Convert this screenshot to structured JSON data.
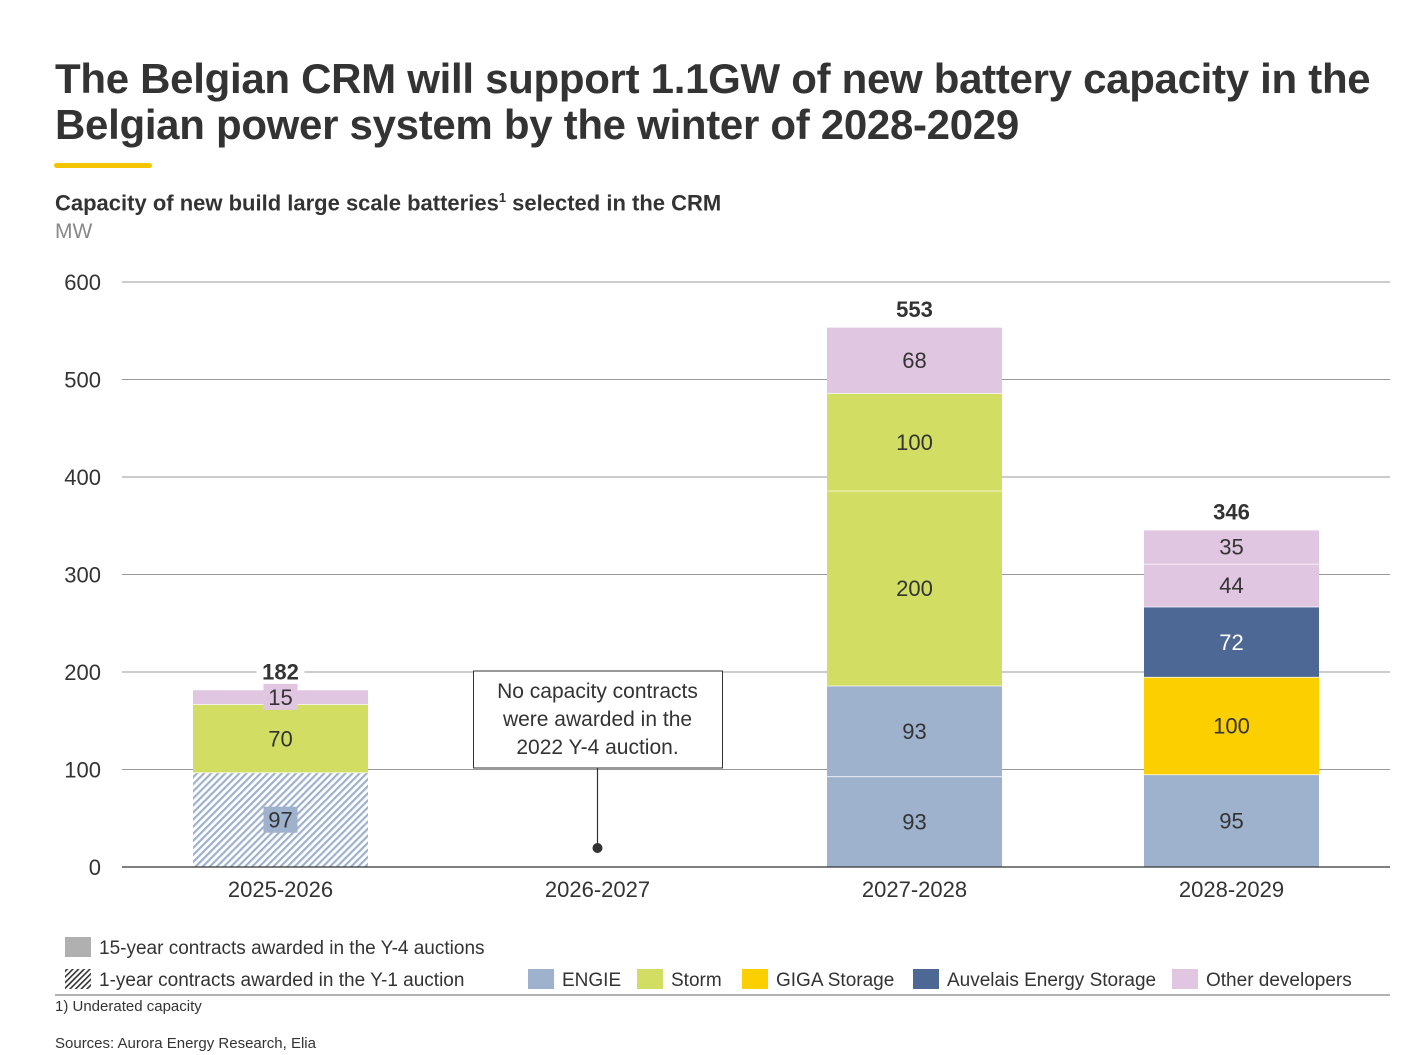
{
  "title": "The Belgian CRM will support 1.1GW of new battery capacity in the Belgian power system by the winter of 2028-2029",
  "subtitle": "Capacity of new build large scale batteries",
  "subtitle_sup": "1",
  "subtitle_end": " selected in the CRM",
  "footnote": "1) Underated capacity",
  "sources": "Sources: Aurora Energy Research, Elia",
  "chart_data": {
    "type": "bar",
    "stacked": true,
    "ylabel": "MW",
    "ylim": [
      0,
      600
    ],
    "yticks": [
      0,
      100,
      200,
      300,
      400,
      500,
      600
    ],
    "grid": true,
    "categories": [
      "2025-2026",
      "2026-2027",
      "2027-2028",
      "2028-2029"
    ],
    "totals": [
      182,
      null,
      553,
      346
    ],
    "stacks": [
      [
        {
          "series": "ENGIE",
          "value": 97,
          "contract": "1-year contracts awarded in the Y-1 auction"
        },
        {
          "series": "Storm",
          "value": 70
        },
        {
          "series": "Other developers",
          "value": 15
        }
      ],
      [],
      [
        {
          "series": "ENGIE",
          "value": 93
        },
        {
          "series": "ENGIE",
          "value": 93
        },
        {
          "series": "Storm",
          "value": 200
        },
        {
          "series": "Storm",
          "value": 100
        },
        {
          "series": "Other developers",
          "value": 68
        }
      ],
      [
        {
          "series": "ENGIE",
          "value": 95
        },
        {
          "series": "GIGA Storage",
          "value": 100
        },
        {
          "series": "Auvelais Energy Storage",
          "value": 72
        },
        {
          "series": "Other developers",
          "value": 44
        },
        {
          "series": "Other developers",
          "value": 35
        }
      ]
    ],
    "series": [
      {
        "name": "ENGIE",
        "color": "#9eb1cd"
      },
      {
        "name": "Storm",
        "color": "#d2de63"
      },
      {
        "name": "GIGA Storage",
        "color": "#fccf00"
      },
      {
        "name": "Auvelais Energy Storage",
        "color": "#4d6894"
      },
      {
        "name": "Other developers",
        "color": "#e1c6e2"
      }
    ],
    "contract_legend": [
      {
        "label": "15-year contracts awarded in the Y-4 auctions",
        "style": "solid",
        "color": "#b0b0b0"
      },
      {
        "label": "1-year contracts awarded in the Y-1 auction",
        "style": "hatched"
      }
    ],
    "annotation": {
      "category": "2026-2027",
      "lines": [
        "No capacity contracts",
        "were awarded in the",
        "2022 Y-4 auction."
      ]
    },
    "legend_position": "bottom"
  }
}
